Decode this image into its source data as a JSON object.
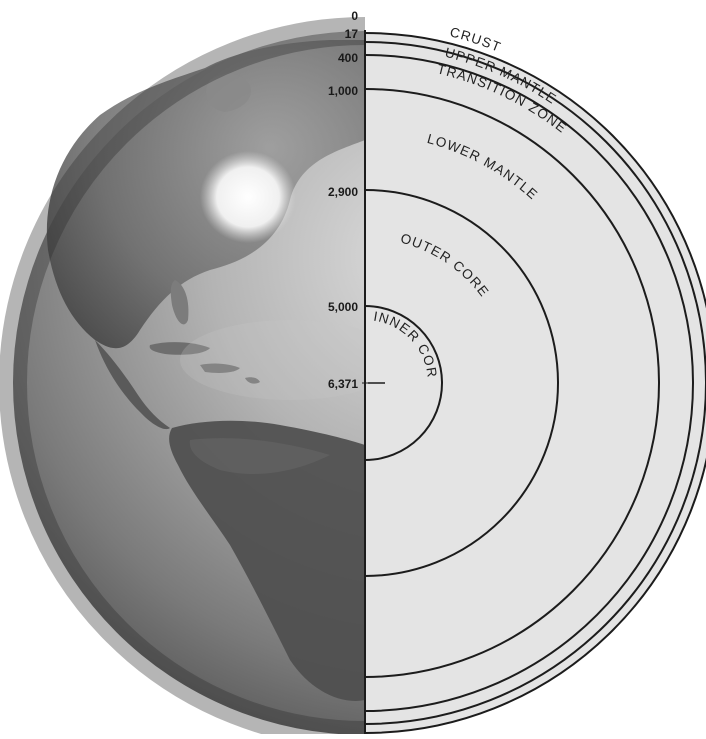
{
  "figure": {
    "depth_ticks": [
      {
        "label": "0"
      },
      {
        "label": "17"
      },
      {
        "label": "400"
      },
      {
        "label": "1,000"
      },
      {
        "label": "2,900"
      },
      {
        "label": "5,000"
      },
      {
        "label": "6,371"
      }
    ],
    "layer_labels": {
      "crust": "CRUST",
      "upper_mantle": "UPPER MANTLE",
      "transition_zone": "TRANSITION ZONE",
      "lower_mantle": "LOWER MANTLE",
      "outer_core": "OUTER CORE",
      "inner_core": "INNER CORE"
    },
    "colors": {
      "cross_section_fill": "#e4e4e4",
      "boundary_line": "#1c1c1c",
      "globe_light": "#d8d8d8",
      "globe_dark": "#3a3a3a"
    }
  }
}
